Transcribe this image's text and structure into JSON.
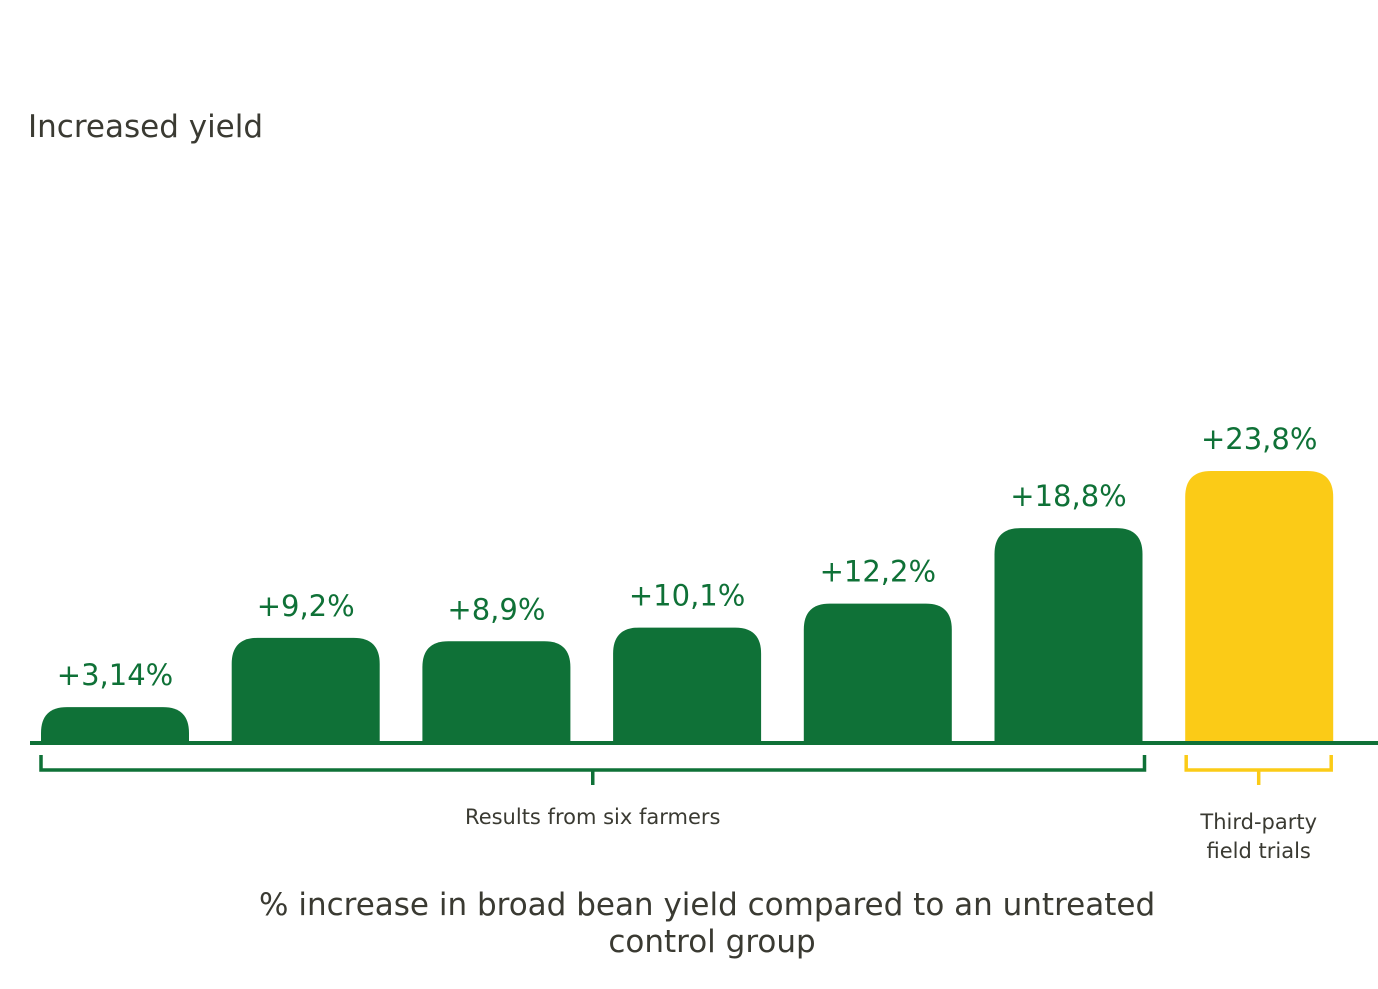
{
  "chart_data": {
    "type": "bar",
    "title": "Increased yield",
    "categories": [
      "",
      "",
      "",
      "",
      "",
      "",
      ""
    ],
    "values": [
      3.14,
      9.2,
      8.9,
      10.1,
      12.2,
      18.8,
      23.8
    ],
    "value_labels": [
      "+3,14%",
      "+9,2%",
      "+8,9%",
      "+10,1%",
      "+12,2%",
      "+18,8%",
      "+23,8%"
    ],
    "groups": [
      {
        "label_lines": [
          "Results from six farmers"
        ],
        "bars": [
          0,
          1,
          2,
          3,
          4,
          5
        ],
        "color": "#0f7137"
      },
      {
        "label_lines": [
          "Third-party",
          "field trials"
        ],
        "bars": [
          6
        ],
        "color": "#fbcb17"
      }
    ],
    "xlabel_lines": [
      "% increase in broad bean yield compared to an untreated",
      "control group"
    ],
    "ylabel": "",
    "ylim": [
      0,
      23.8
    ],
    "grid": false,
    "colors": {
      "farmer_bar": "#0f7137",
      "trial_bar": "#fbcb17",
      "baseline": "#0f7137",
      "text": "#3a3a32"
    }
  }
}
